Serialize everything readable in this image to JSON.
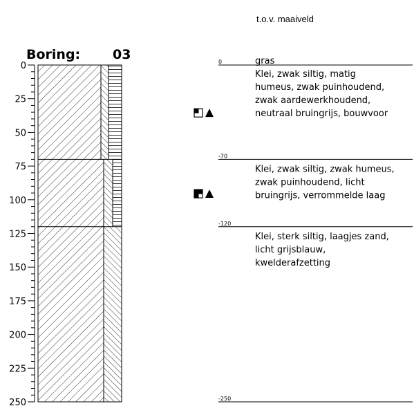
{
  "reference_label": "t.o.v. maaiveld",
  "boring": {
    "label": "Boring:",
    "number": "03"
  },
  "axis": {
    "min": 0,
    "max": 250,
    "major_step": 25,
    "minor_step": 5,
    "tick_labels": [
      "0",
      "25",
      "50",
      "75",
      "100",
      "125",
      "150",
      "175",
      "200",
      "225",
      "250"
    ]
  },
  "layers": [
    {
      "top": 0,
      "bottom": 70,
      "inner_column": "hatch-back",
      "outer_column": "horizontal-lines",
      "top_label": "0",
      "description": [
        "gras",
        "Klei, zwak siltig, matig",
        "humeus, zwak puinhoudend,",
        "zwak aardewerkhoudend,",
        "neutraal bruingrijs, bouwvoor"
      ],
      "sample_marker": {
        "depth": 35,
        "symbols": [
          "square-half-icon",
          "triangle-icon"
        ]
      }
    },
    {
      "top": 70,
      "bottom": 120,
      "inner_column": "hatch-back",
      "outer_column": "horizontal-lines",
      "top_label": "-70",
      "description": [
        "Klei, zwak siltig, zwak humeus,",
        "zwak puinhoudend, licht",
        "bruingrijs, verrommelde laag"
      ],
      "sample_marker": {
        "depth": 95,
        "symbols": [
          "square-filled-half-icon",
          "triangle-icon"
        ]
      }
    },
    {
      "top": 120,
      "bottom": 250,
      "inner_column": "hatch-back",
      "outer_column": "none",
      "top_label": "-120",
      "description": [
        "Klei, sterk siltig, laagjes zand,",
        "licht grijsblauw,",
        "kwelderafzetting"
      ],
      "sample_marker": null
    }
  ],
  "bottom_label": "-250"
}
